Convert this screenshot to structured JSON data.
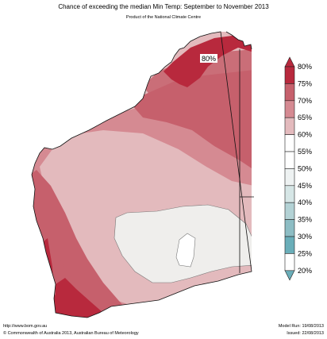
{
  "title": "Chance of exceeding the median Min Temp: September to November 2013",
  "subtitle": "Product of the National Climate Centre",
  "map_label": "80%",
  "legend": {
    "colors": [
      "#6aaeb9",
      "#8dbdc4",
      "#b3d2d5",
      "#d6e6e6",
      "#eef2f2",
      "#ffffff",
      "#ffffff",
      "#e3babd",
      "#d58a92",
      "#c6606c",
      "#b8293d",
      "#b8293d"
    ],
    "labels": [
      "20%",
      "25%",
      "30%",
      "35%",
      "40%",
      "45%",
      "50%",
      "55%",
      "60%",
      "65%",
      "70%",
      "75%",
      "80%"
    ]
  },
  "footer": {
    "url": "http://www.bom.gov.au",
    "copyright": "©  Commonwealth of Australia 2013, Australian Bureau of Meteorology",
    "model_run": "Model Run: 19/08/2013",
    "issued": "Issued: 22/08/2013"
  }
}
